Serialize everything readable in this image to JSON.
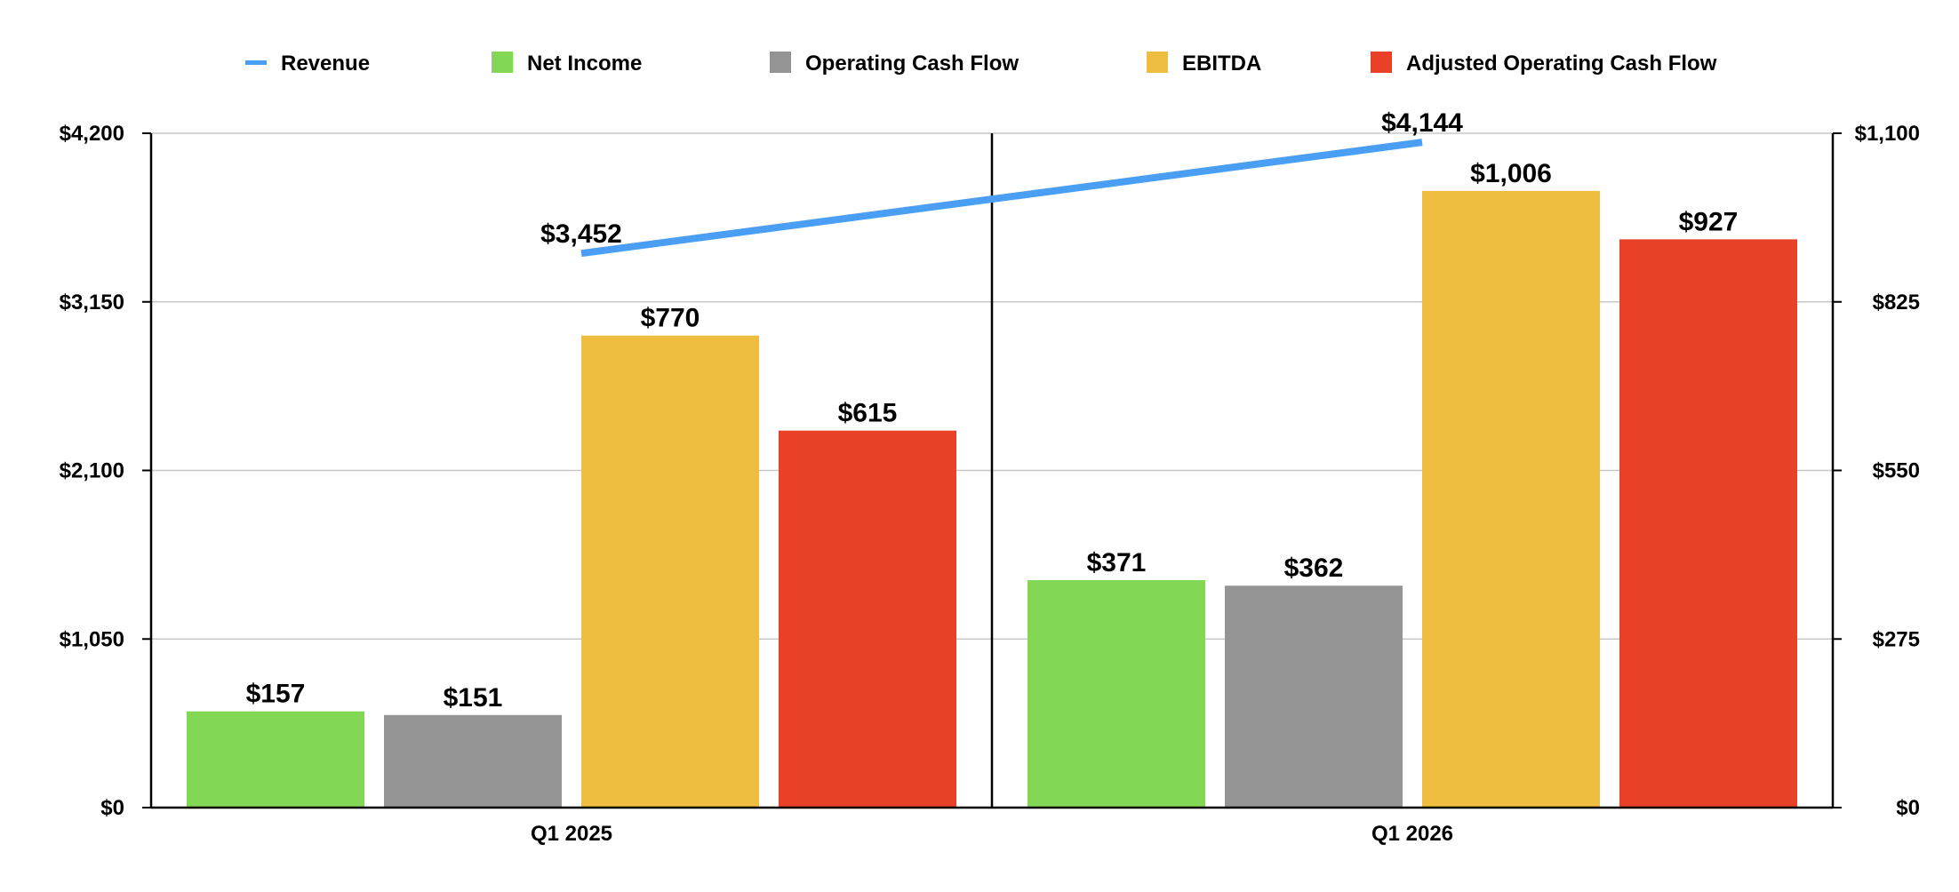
{
  "chart_data": {
    "type": "bar",
    "categories": [
      "Q1 2025",
      "Q1 2026"
    ],
    "legend_position": "top",
    "grid": true,
    "series": [
      {
        "name": "Revenue",
        "kind": "line",
        "axis": "left",
        "color": "#4a9ff5",
        "values": [
          3452,
          4144
        ],
        "labels": [
          "$3,452",
          "$4,144"
        ]
      },
      {
        "name": "Net Income",
        "kind": "bar",
        "axis": "right",
        "color": "#82d855",
        "values": [
          157,
          371
        ],
        "labels": [
          "$157",
          "$371"
        ]
      },
      {
        "name": "Operating Cash Flow",
        "kind": "bar",
        "axis": "right",
        "color": "#949494",
        "values": [
          151,
          362
        ],
        "labels": [
          "$151",
          "$362"
        ]
      },
      {
        "name": "EBITDA",
        "kind": "bar",
        "axis": "right",
        "color": "#efbd40",
        "values": [
          770,
          1006
        ],
        "labels": [
          "$770",
          "$1,006"
        ]
      },
      {
        "name": "Adjusted Operating Cash Flow",
        "kind": "bar",
        "axis": "right",
        "color": "#e94128",
        "values": [
          615,
          927
        ],
        "labels": [
          "$615",
          "$927"
        ]
      }
    ],
    "y_left": {
      "min": 0,
      "max": 4200,
      "ticks": [
        0,
        1050,
        2100,
        3150,
        4200
      ],
      "tick_labels": [
        "$0",
        "$1,050",
        "$2,100",
        "$3,150",
        "$4,200"
      ]
    },
    "y_right": {
      "min": 0,
      "max": 1100,
      "ticks": [
        0,
        275,
        550,
        825,
        1100
      ],
      "tick_labels": [
        "$0",
        "$275",
        "$550",
        "$825",
        "$1,100"
      ]
    }
  }
}
